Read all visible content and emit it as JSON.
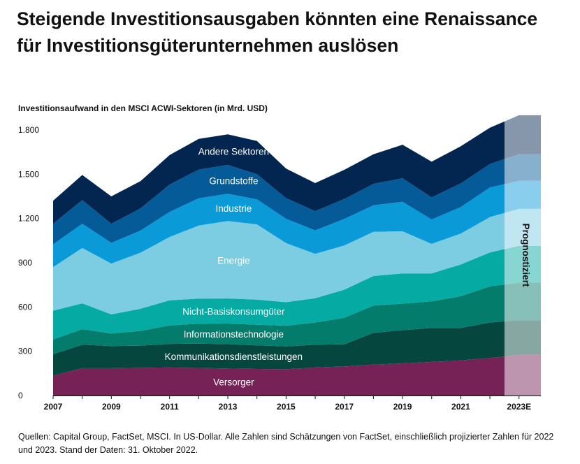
{
  "title": "Steigende Investitionsausgaben könnten eine Renaissance für Investitionsgüterunternehmen auslösen",
  "source": "Quellen: Capital Group, FactSet, MSCI. In US-Dollar. Alle Zahlen sind Schätzungen von FactSet, einschließlich projizierter Zahlen für 2022 und 2023. Stand der Daten: 31. Oktober 2022.",
  "chart_data": {
    "type": "area",
    "stacked": true,
    "title": "Investitionsaufwand in den MSCI ACWI-Sektoren (in Mrd. USD)",
    "xlabel": "",
    "ylabel": "",
    "x": [
      2007,
      2008,
      2009,
      2010,
      2011,
      2012,
      2013,
      2014,
      2015,
      2016,
      2017,
      2018,
      2019,
      2020,
      2021,
      2022,
      2023
    ],
    "x_tick_labels": [
      "2007",
      "2009",
      "2011",
      "2013",
      "2015",
      "2017",
      "2019",
      "2021",
      "2023E"
    ],
    "x_tick_values": [
      2007,
      2009,
      2011,
      2013,
      2015,
      2017,
      2019,
      2021,
      2023
    ],
    "ylim": [
      0,
      1800
    ],
    "y_ticks": [
      0,
      300,
      600,
      900,
      1200,
      1500,
      1800
    ],
    "y_tick_labels": [
      "0",
      "300",
      "600",
      "900",
      "1.200",
      "1.500",
      "1.800"
    ],
    "forecast_start": 2022.5,
    "forecast_label": "Prognostiziert",
    "series": [
      {
        "name": "Versorger",
        "color": "#772257",
        "values": [
          135,
          185,
          185,
          188,
          190,
          187,
          183,
          180,
          178,
          190,
          197,
          210,
          218,
          228,
          238,
          255,
          275
        ]
      },
      {
        "name": "Kommunikationsdienstleistungen",
        "color": "#05473f",
        "values": [
          145,
          160,
          150,
          150,
          160,
          165,
          165,
          160,
          155,
          155,
          150,
          215,
          225,
          230,
          220,
          240,
          235
        ]
      },
      {
        "name": "Informationstechnologie",
        "color": "#047c6c",
        "values": [
          100,
          105,
          85,
          100,
          125,
          135,
          140,
          140,
          140,
          150,
          180,
          185,
          180,
          180,
          215,
          245,
          255
        ]
      },
      {
        "name": "Nicht-Basiskonsumgüter",
        "color": "#05aaa2",
        "values": [
          195,
          175,
          130,
          150,
          170,
          170,
          170,
          170,
          160,
          165,
          190,
          200,
          205,
          190,
          215,
          230,
          250
        ]
      },
      {
        "name": "Energie",
        "color": "#7ccde1",
        "values": [
          295,
          375,
          345,
          380,
          430,
          495,
          525,
          510,
          400,
          300,
          300,
          300,
          285,
          200,
          210,
          240,
          250
        ]
      },
      {
        "name": "Industrie",
        "color": "#0a9ad8",
        "values": [
          155,
          165,
          140,
          150,
          170,
          185,
          185,
          170,
          165,
          160,
          180,
          180,
          200,
          165,
          180,
          200,
          190
        ]
      },
      {
        "name": "Grundstoffe",
        "color": "#055a98",
        "values": [
          140,
          160,
          130,
          150,
          185,
          195,
          195,
          170,
          140,
          130,
          135,
          145,
          160,
          150,
          160,
          160,
          180
        ]
      },
      {
        "name": "Andere Sektoren",
        "color": "#032651",
        "values": [
          155,
          170,
          185,
          185,
          200,
          208,
          207,
          225,
          200,
          190,
          198,
          200,
          227,
          242,
          252,
          245,
          265
        ]
      }
    ]
  }
}
